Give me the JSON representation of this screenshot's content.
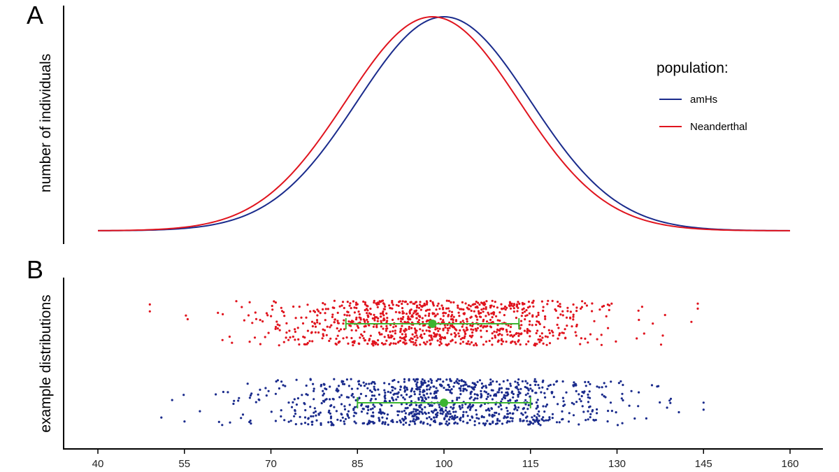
{
  "chart_data": [
    {
      "type": "line",
      "panel_label": "A",
      "ylabel": "number of individuals",
      "x_range": [
        40,
        160
      ],
      "legend": {
        "title": "population:",
        "placement": "top-right",
        "entries": [
          {
            "label": "amHs",
            "color": "#1a2b8c"
          },
          {
            "label": "Neanderthal",
            "color": "#e0141e"
          }
        ]
      },
      "series": [
        {
          "name": "amHs",
          "color": "#1a2b8c",
          "distribution": "normal",
          "mean": 100,
          "sd": 15
        },
        {
          "name": "Neanderthal",
          "color": "#e0141e",
          "distribution": "normal",
          "mean": 98,
          "sd": 15
        }
      ],
      "grid": false
    },
    {
      "type": "scatter",
      "panel_label": "B",
      "ylabel": "example distributions",
      "xlim": [
        37,
        164
      ],
      "xticks": [
        40,
        55,
        70,
        85,
        100,
        115,
        130,
        145,
        160
      ],
      "grid": false,
      "series": [
        {
          "name": "Neanderthal",
          "color": "#e0141e",
          "n": 1000,
          "mean": 98,
          "sd": 15,
          "x_min": 49,
          "x_max": 144,
          "summary": {
            "mean": 98,
            "sd_low": 83,
            "sd_high": 113,
            "color": "#3cb531"
          }
        },
        {
          "name": "amHs",
          "color": "#1a2b8c",
          "n": 1000,
          "mean": 100,
          "sd": 15,
          "x_min": 51,
          "x_max": 145,
          "summary": {
            "mean": 100,
            "sd_low": 85,
            "sd_high": 115,
            "color": "#3cb531"
          }
        }
      ]
    }
  ]
}
